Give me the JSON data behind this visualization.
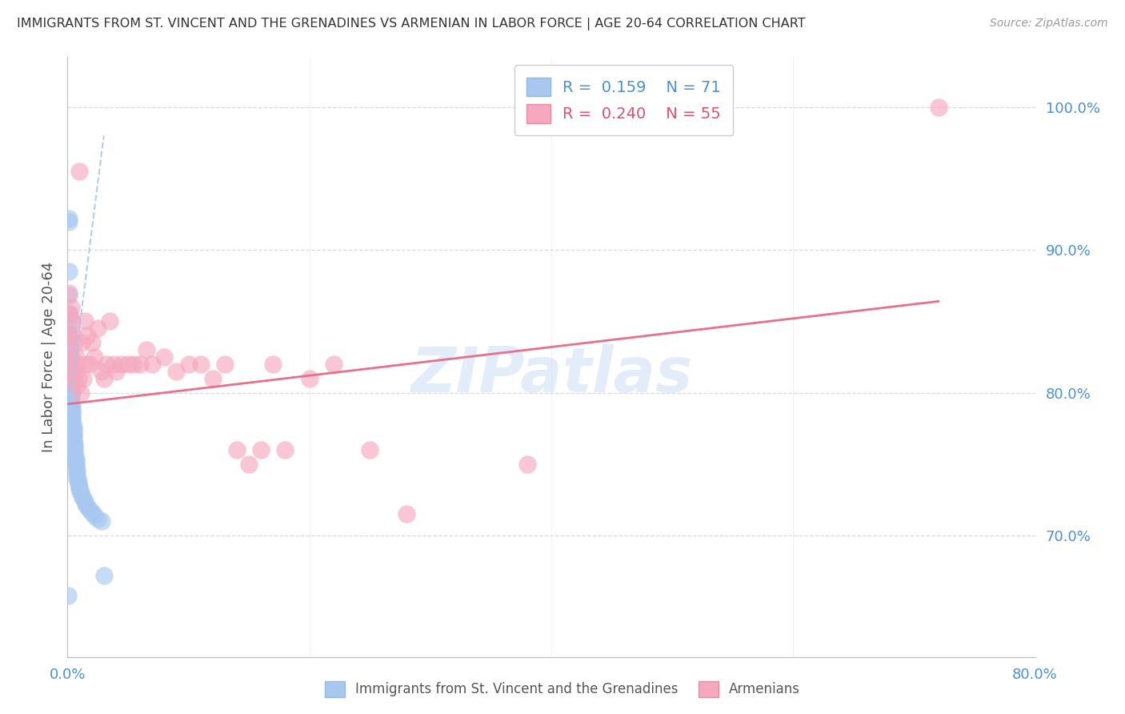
{
  "title": "IMMIGRANTS FROM ST. VINCENT AND THE GRENADINES VS ARMENIAN IN LABOR FORCE | AGE 20-64 CORRELATION CHART",
  "source": "Source: ZipAtlas.com",
  "ylabel": "In Labor Force | Age 20-64",
  "xlim": [
    0.0,
    0.8
  ],
  "ylim": [
    0.615,
    1.035
  ],
  "yticks": [
    0.7,
    0.8,
    0.9,
    1.0
  ],
  "ytick_labels": [
    "70.0%",
    "80.0%",
    "90.0%",
    "100.0%"
  ],
  "xticks": [
    0.0,
    0.2,
    0.4,
    0.6,
    0.8
  ],
  "xtick_labels": [
    "0.0%",
    "",
    "",
    "",
    "80.0%"
  ],
  "blue_R": 0.159,
  "blue_N": 71,
  "pink_R": 0.24,
  "pink_N": 55,
  "blue_label": "Immigrants from St. Vincent and the Grenadines",
  "pink_label": "Armenians",
  "blue_color": "#a8c8f0",
  "pink_color": "#f5a8be",
  "pink_line_color": "#e8708a",
  "blue_line_color": "#a8c8f0",
  "watermark_color": "#c8daf5",
  "background_color": "#ffffff",
  "grid_color": "#d0d0d0",
  "title_color": "#333333",
  "tick_color": "#4a90d9",
  "blue_scatter_x": [
    0.0008,
    0.0008,
    0.001,
    0.001,
    0.001,
    0.001,
    0.001,
    0.001,
    0.001,
    0.0015,
    0.0015,
    0.0015,
    0.002,
    0.002,
    0.002,
    0.002,
    0.002,
    0.002,
    0.0025,
    0.0025,
    0.003,
    0.003,
    0.003,
    0.003,
    0.003,
    0.003,
    0.003,
    0.003,
    0.004,
    0.004,
    0.004,
    0.004,
    0.004,
    0.004,
    0.004,
    0.005,
    0.005,
    0.005,
    0.005,
    0.005,
    0.005,
    0.006,
    0.006,
    0.006,
    0.006,
    0.006,
    0.007,
    0.007,
    0.007,
    0.007,
    0.008,
    0.008,
    0.008,
    0.008,
    0.009,
    0.009,
    0.01,
    0.01,
    0.011,
    0.012,
    0.013,
    0.014,
    0.015,
    0.016,
    0.018,
    0.02,
    0.022,
    0.025,
    0.028,
    0.03,
    0.0005
  ],
  "blue_scatter_y": [
    0.922,
    0.92,
    0.885,
    0.868,
    0.855,
    0.852,
    0.845,
    0.84,
    0.838,
    0.835,
    0.832,
    0.828,
    0.825,
    0.822,
    0.82,
    0.818,
    0.815,
    0.812,
    0.81,
    0.808,
    0.806,
    0.804,
    0.802,
    0.8,
    0.798,
    0.796,
    0.794,
    0.792,
    0.79,
    0.788,
    0.786,
    0.784,
    0.782,
    0.78,
    0.778,
    0.776,
    0.774,
    0.772,
    0.77,
    0.768,
    0.766,
    0.764,
    0.762,
    0.76,
    0.758,
    0.756,
    0.754,
    0.752,
    0.75,
    0.748,
    0.746,
    0.744,
    0.742,
    0.74,
    0.738,
    0.736,
    0.734,
    0.732,
    0.73,
    0.728,
    0.726,
    0.724,
    0.722,
    0.72,
    0.718,
    0.716,
    0.714,
    0.712,
    0.71,
    0.672,
    0.658
  ],
  "pink_scatter_x": [
    0.001,
    0.002,
    0.002,
    0.003,
    0.003,
    0.004,
    0.004,
    0.005,
    0.005,
    0.006,
    0.007,
    0.007,
    0.008,
    0.008,
    0.009,
    0.01,
    0.011,
    0.012,
    0.013,
    0.014,
    0.015,
    0.016,
    0.018,
    0.02,
    0.022,
    0.025,
    0.028,
    0.03,
    0.032,
    0.035,
    0.038,
    0.04,
    0.045,
    0.05,
    0.055,
    0.06,
    0.065,
    0.07,
    0.08,
    0.09,
    0.1,
    0.11,
    0.12,
    0.13,
    0.14,
    0.15,
    0.16,
    0.17,
    0.18,
    0.2,
    0.22,
    0.25,
    0.28,
    0.38,
    0.72
  ],
  "pink_scatter_y": [
    0.87,
    0.855,
    0.84,
    0.86,
    0.825,
    0.85,
    0.815,
    0.84,
    0.808,
    0.835,
    0.825,
    0.815,
    0.82,
    0.805,
    0.81,
    0.955,
    0.8,
    0.835,
    0.81,
    0.85,
    0.82,
    0.84,
    0.82,
    0.835,
    0.825,
    0.845,
    0.815,
    0.81,
    0.82,
    0.85,
    0.82,
    0.815,
    0.82,
    0.82,
    0.82,
    0.82,
    0.83,
    0.82,
    0.825,
    0.815,
    0.82,
    0.82,
    0.81,
    0.82,
    0.76,
    0.75,
    0.76,
    0.82,
    0.76,
    0.81,
    0.82,
    0.76,
    0.715,
    0.75,
    1.0
  ],
  "blue_trendline_x": [
    0.002,
    0.03
  ],
  "blue_trendline_y": [
    0.793,
    0.98
  ],
  "pink_trendline_x": [
    0.0,
    0.72
  ],
  "pink_trendline_y": [
    0.792,
    0.864
  ]
}
